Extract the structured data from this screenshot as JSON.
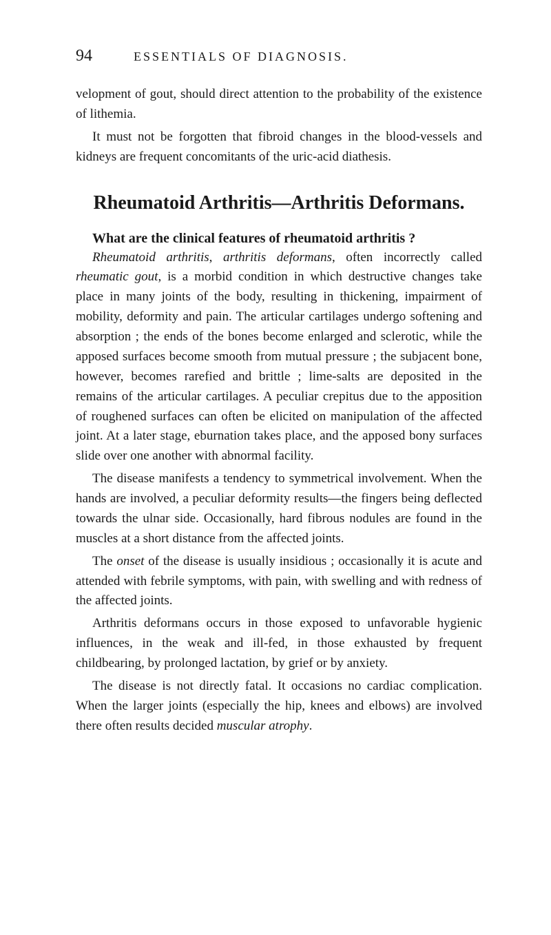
{
  "page": {
    "number": "94",
    "running_title": "ESSENTIALS OF DIAGNOSIS.",
    "background_color": "#ffffff",
    "text_color": "#1a1a1a"
  },
  "intro_paragraphs": [
    {
      "indent": false,
      "text": "velopment of gout, should direct attention to the probability of the existence of lithemia."
    },
    {
      "indent": true,
      "text": "It must not be forgotten that fibroid changes in the blood-vessels and kidneys are frequent concomitants of the uric-acid diathesis."
    }
  ],
  "section": {
    "heading": "Rheumatoid Arthritis—Arthritis Deformans.",
    "question": "What are the clinical features of rheumatoid arthritis ?",
    "paragraphs": [
      {
        "indent": true,
        "html": "<span class=\"italic\">Rheumatoid arthritis</span>, <span class=\"italic\">arthritis deformans</span>, often incorrectly called <span class=\"italic\">rheumatic gout</span>, is a morbid condition in which destructive changes take place in many joints of the body, resulting in thick­ening, impairment of mobility, deformity and pain. The ar­ticular cartilages undergo softening and absorption ; the ends of the bones become enlarged and sclerotic, while the apposed surfaces become smooth from mutual pressure ; the subjacent bone, however, becomes rarefied and brittle ; lime-salts are de­posited in the remains of the articular cartilages. A peculiar crepitus due to the apposition of roughened surfaces can often be elicited on manipulation of the affected joint. At a later stage, eburnation takes place, and the apposed bony surfaces slide over one another with abnormal facility."
      },
      {
        "indent": true,
        "html": "The disease manifests a tendency to symmetrical involvement. When the hands are involved, a peculiar deformity results—the fingers being deflected towards the ulnar side. Occasionally, hard fibrous nodules are found in the muscles at a short distance from the affected joints."
      },
      {
        "indent": true,
        "html": "The <span class=\"italic\">onset</span> of the disease is usually insidious ; occasionally it is acute and attended with febrile symptoms, with pain, with swelling and with redness of the affected joints."
      },
      {
        "indent": true,
        "html": "Arthritis deformans occurs in those exposed to unfavorable hygienic influences, in the weak and ill-fed, in those exhausted by frequent childbearing, by prolonged lactation, by grief or by anxiety."
      },
      {
        "indent": true,
        "html": "The disease is not directly fatal. It occasions no cardiac com­plication. When the larger joints (especially the hip, knees and elbows) are involved there often results decided <span class=\"italic\">muscular atrophy</span>."
      }
    ]
  }
}
